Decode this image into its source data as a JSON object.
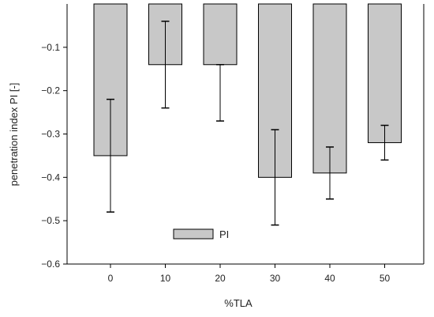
{
  "chart_data": {
    "type": "bar",
    "title": "",
    "xlabel": "%TLA",
    "ylabel": "penetration index PI [-]",
    "categories": [
      "0",
      "10",
      "20",
      "30",
      "40",
      "50"
    ],
    "series": [
      {
        "name": "PI",
        "values": [
          -0.35,
          -0.14,
          -0.14,
          -0.4,
          -0.39,
          -0.32
        ],
        "error_low": [
          -0.48,
          -0.24,
          -0.27,
          -0.51,
          -0.45,
          -0.36
        ],
        "error_high": [
          -0.22,
          -0.04,
          -0.14,
          -0.29,
          -0.33,
          -0.28
        ],
        "color": "#c8c8c8"
      }
    ],
    "ylim": [
      -0.6,
      0.0
    ],
    "yticks": [
      -0.1,
      -0.2,
      -0.3,
      -0.4,
      -0.5,
      -0.6
    ],
    "ytick_labels": [
      "−0.1",
      "−0.2",
      "−0.3",
      "−0.4",
      "−0.5",
      "−0.6"
    ],
    "grid": false,
    "legend": {
      "entries": [
        "PI"
      ],
      "placement": "lower-left"
    }
  }
}
